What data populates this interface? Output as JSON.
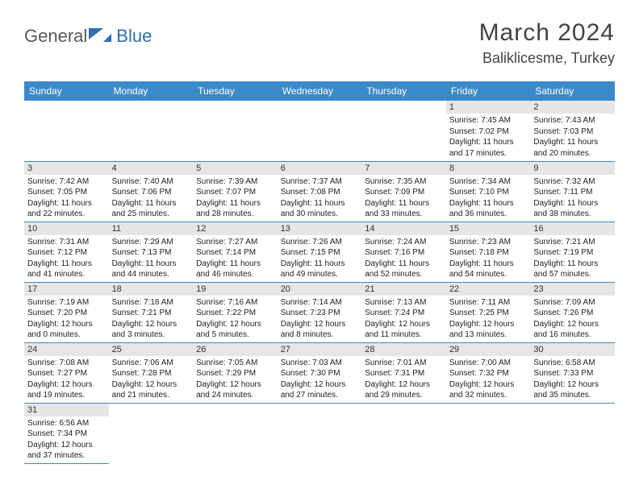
{
  "logo": {
    "text1": "General",
    "text2": "Blue"
  },
  "title": "March 2024",
  "location": "Baliklicesme, Turkey",
  "colors": {
    "header_bg": "#3a8ac9",
    "daynum_bg": "#e6e6e6",
    "border": "#3a8ac9",
    "logo_gray": "#5a5a5a",
    "logo_blue": "#2f6fb0"
  },
  "weekdays": [
    "Sunday",
    "Monday",
    "Tuesday",
    "Wednesday",
    "Thursday",
    "Friday",
    "Saturday"
  ],
  "weeks": [
    [
      null,
      null,
      null,
      null,
      null,
      {
        "n": "1",
        "sr": "Sunrise: 7:45 AM",
        "ss": "Sunset: 7:02 PM",
        "dl": "Daylight: 11 hours and 17 minutes."
      },
      {
        "n": "2",
        "sr": "Sunrise: 7:43 AM",
        "ss": "Sunset: 7:03 PM",
        "dl": "Daylight: 11 hours and 20 minutes."
      }
    ],
    [
      {
        "n": "3",
        "sr": "Sunrise: 7:42 AM",
        "ss": "Sunset: 7:05 PM",
        "dl": "Daylight: 11 hours and 22 minutes."
      },
      {
        "n": "4",
        "sr": "Sunrise: 7:40 AM",
        "ss": "Sunset: 7:06 PM",
        "dl": "Daylight: 11 hours and 25 minutes."
      },
      {
        "n": "5",
        "sr": "Sunrise: 7:39 AM",
        "ss": "Sunset: 7:07 PM",
        "dl": "Daylight: 11 hours and 28 minutes."
      },
      {
        "n": "6",
        "sr": "Sunrise: 7:37 AM",
        "ss": "Sunset: 7:08 PM",
        "dl": "Daylight: 11 hours and 30 minutes."
      },
      {
        "n": "7",
        "sr": "Sunrise: 7:35 AM",
        "ss": "Sunset: 7:09 PM",
        "dl": "Daylight: 11 hours and 33 minutes."
      },
      {
        "n": "8",
        "sr": "Sunrise: 7:34 AM",
        "ss": "Sunset: 7:10 PM",
        "dl": "Daylight: 11 hours and 36 minutes."
      },
      {
        "n": "9",
        "sr": "Sunrise: 7:32 AM",
        "ss": "Sunset: 7:11 PM",
        "dl": "Daylight: 11 hours and 38 minutes."
      }
    ],
    [
      {
        "n": "10",
        "sr": "Sunrise: 7:31 AM",
        "ss": "Sunset: 7:12 PM",
        "dl": "Daylight: 11 hours and 41 minutes."
      },
      {
        "n": "11",
        "sr": "Sunrise: 7:29 AM",
        "ss": "Sunset: 7:13 PM",
        "dl": "Daylight: 11 hours and 44 minutes."
      },
      {
        "n": "12",
        "sr": "Sunrise: 7:27 AM",
        "ss": "Sunset: 7:14 PM",
        "dl": "Daylight: 11 hours and 46 minutes."
      },
      {
        "n": "13",
        "sr": "Sunrise: 7:26 AM",
        "ss": "Sunset: 7:15 PM",
        "dl": "Daylight: 11 hours and 49 minutes."
      },
      {
        "n": "14",
        "sr": "Sunrise: 7:24 AM",
        "ss": "Sunset: 7:16 PM",
        "dl": "Daylight: 11 hours and 52 minutes."
      },
      {
        "n": "15",
        "sr": "Sunrise: 7:23 AM",
        "ss": "Sunset: 7:18 PM",
        "dl": "Daylight: 11 hours and 54 minutes."
      },
      {
        "n": "16",
        "sr": "Sunrise: 7:21 AM",
        "ss": "Sunset: 7:19 PM",
        "dl": "Daylight: 11 hours and 57 minutes."
      }
    ],
    [
      {
        "n": "17",
        "sr": "Sunrise: 7:19 AM",
        "ss": "Sunset: 7:20 PM",
        "dl": "Daylight: 12 hours and 0 minutes."
      },
      {
        "n": "18",
        "sr": "Sunrise: 7:18 AM",
        "ss": "Sunset: 7:21 PM",
        "dl": "Daylight: 12 hours and 3 minutes."
      },
      {
        "n": "19",
        "sr": "Sunrise: 7:16 AM",
        "ss": "Sunset: 7:22 PM",
        "dl": "Daylight: 12 hours and 5 minutes."
      },
      {
        "n": "20",
        "sr": "Sunrise: 7:14 AM",
        "ss": "Sunset: 7:23 PM",
        "dl": "Daylight: 12 hours and 8 minutes."
      },
      {
        "n": "21",
        "sr": "Sunrise: 7:13 AM",
        "ss": "Sunset: 7:24 PM",
        "dl": "Daylight: 12 hours and 11 minutes."
      },
      {
        "n": "22",
        "sr": "Sunrise: 7:11 AM",
        "ss": "Sunset: 7:25 PM",
        "dl": "Daylight: 12 hours and 13 minutes."
      },
      {
        "n": "23",
        "sr": "Sunrise: 7:09 AM",
        "ss": "Sunset: 7:26 PM",
        "dl": "Daylight: 12 hours and 16 minutes."
      }
    ],
    [
      {
        "n": "24",
        "sr": "Sunrise: 7:08 AM",
        "ss": "Sunset: 7:27 PM",
        "dl": "Daylight: 12 hours and 19 minutes."
      },
      {
        "n": "25",
        "sr": "Sunrise: 7:06 AM",
        "ss": "Sunset: 7:28 PM",
        "dl": "Daylight: 12 hours and 21 minutes."
      },
      {
        "n": "26",
        "sr": "Sunrise: 7:05 AM",
        "ss": "Sunset: 7:29 PM",
        "dl": "Daylight: 12 hours and 24 minutes."
      },
      {
        "n": "27",
        "sr": "Sunrise: 7:03 AM",
        "ss": "Sunset: 7:30 PM",
        "dl": "Daylight: 12 hours and 27 minutes."
      },
      {
        "n": "28",
        "sr": "Sunrise: 7:01 AM",
        "ss": "Sunset: 7:31 PM",
        "dl": "Daylight: 12 hours and 29 minutes."
      },
      {
        "n": "29",
        "sr": "Sunrise: 7:00 AM",
        "ss": "Sunset: 7:32 PM",
        "dl": "Daylight: 12 hours and 32 minutes."
      },
      {
        "n": "30",
        "sr": "Sunrise: 6:58 AM",
        "ss": "Sunset: 7:33 PM",
        "dl": "Daylight: 12 hours and 35 minutes."
      }
    ],
    [
      {
        "n": "31",
        "sr": "Sunrise: 6:56 AM",
        "ss": "Sunset: 7:34 PM",
        "dl": "Daylight: 12 hours and 37 minutes."
      },
      null,
      null,
      null,
      null,
      null,
      null
    ]
  ]
}
